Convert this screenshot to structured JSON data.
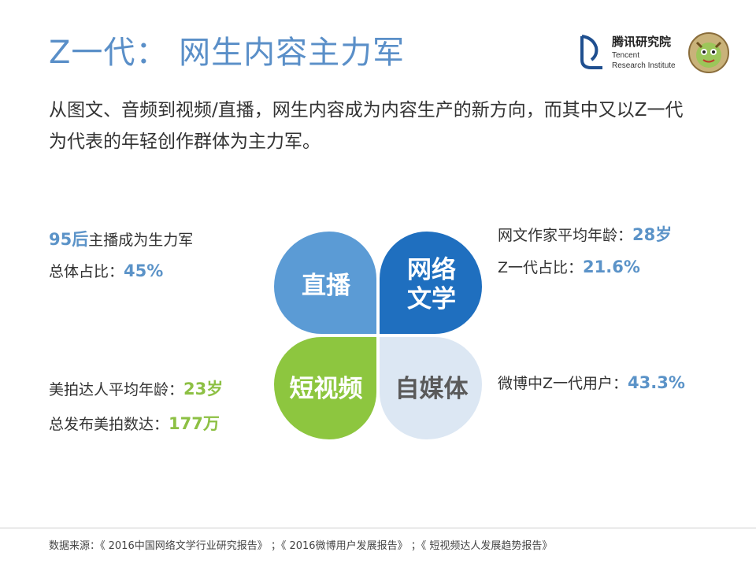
{
  "title": "Z一代： 网生内容主力军",
  "logo": {
    "name_cn": "腾讯研究院",
    "name_en_line1": "Tencent",
    "name_en_line2": "Research Institute",
    "mascot_icon": "mascot-icon"
  },
  "subtitle_line1": "从图文、音频到视频/直播，网生内容成为内容生产的新方向，而其中又以Z一代",
  "subtitle_line2": "为代表的年轻创作群体为主力军。",
  "left_top": {
    "line1_value": "95后",
    "line1_text": "主播成为生力军",
    "line2_text": "总体占比：",
    "line2_value": "45%"
  },
  "left_bottom": {
    "line1_text": "美拍达人平均年龄：",
    "line1_value": "23岁",
    "line2_text": "总发布美拍数达：",
    "line2_value": "177万"
  },
  "right_top": {
    "line1_text": "网文作家平均年龄：",
    "line1_value": "28岁",
    "line2_text": "Z一代占比：",
    "line2_value": "21.6%"
  },
  "right_bottom": {
    "line1_text": "微博中Z一代用户：",
    "line1_value": "43.3%"
  },
  "clover": {
    "top_left": "直播",
    "top_right_line1": "网络",
    "top_right_line2": "文学",
    "bottom_left": "短视频",
    "bottom_right": "自媒体",
    "colors": {
      "top_left": "#5b9bd5",
      "top_right": "#1f6fbf",
      "bottom_left": "#8dc63f",
      "bottom_right": "#dce7f3"
    }
  },
  "footer": "数据来源：《 2016中国网络文学行业研究报告》 ；《 2016微博用户发展报告》 ；《 短视频达人发展趋势报告》"
}
